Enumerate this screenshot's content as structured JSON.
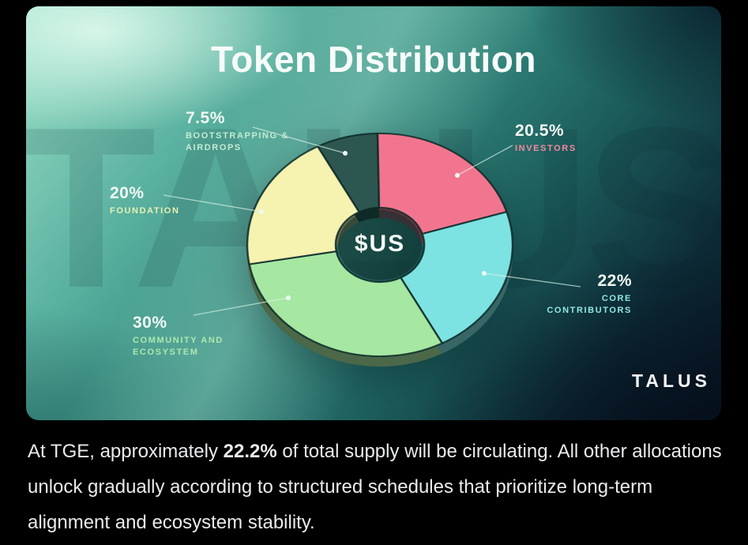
{
  "image": {
    "watermark": "TALUS",
    "brand": "TALUS"
  },
  "chart_data": {
    "type": "pie",
    "donut": true,
    "title": "Token Distribution",
    "center_label": "$US",
    "start_angle": -28,
    "total": 100,
    "value_color": "#f2f9f4",
    "slices": [
      {
        "label": "BOOTSTRAPPING & AIRDROPS",
        "display": "7.5%",
        "value": 7.5,
        "color": "#2d5650",
        "label_color": "#c2ecd2"
      },
      {
        "label": "INVESTORS",
        "display": "20.5%",
        "value": 20.5,
        "color": "#f2758f",
        "label_color": "#f589a0"
      },
      {
        "label": "CORE CONTRIBUTORS",
        "display": "22%",
        "value": 22,
        "color": "#7de2e2",
        "label_color": "#8fe7e4"
      },
      {
        "label": "COMMUNITY AND ECOSYSTEM",
        "display": "30%",
        "value": 30,
        "color": "#a6e7a2",
        "label_color": "#abe9ac"
      },
      {
        "label": "FOUNDATION",
        "display": "20%",
        "value": 20,
        "color": "#f6f2b0",
        "label_color": "#e9efb4"
      }
    ]
  },
  "caption": {
    "pre": "At TGE, approximately ",
    "bold": "22.2%",
    "post": " of total supply will be circulating. All other allocations unlock gradually according to structured schedules that prioritize long-term alignment and ecosystem stability."
  }
}
